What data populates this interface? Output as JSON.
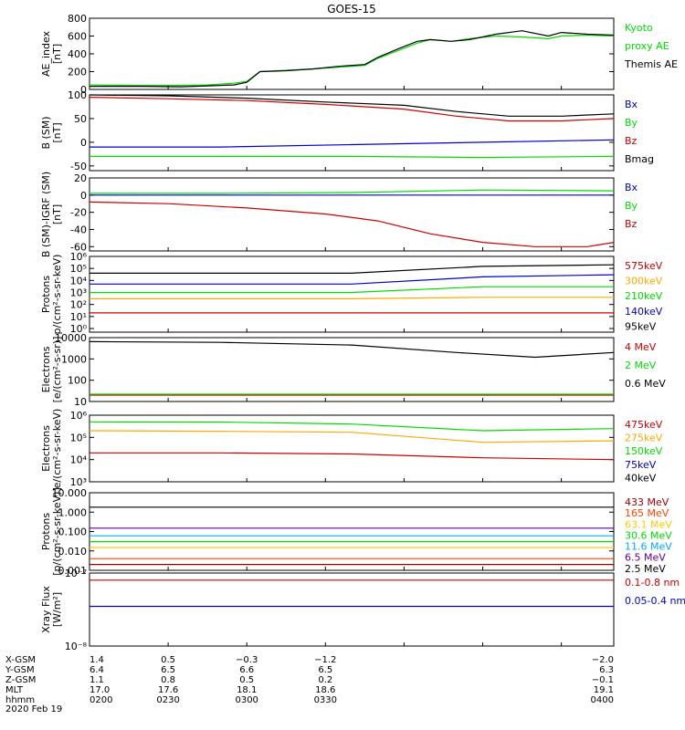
{
  "title": "GOES-15",
  "chart_data": [
    {
      "type": "line",
      "panel": "ae",
      "ylabel": [
        "AE_index",
        "[nT]"
      ],
      "yscale": "linear",
      "ylim": [
        0,
        800
      ],
      "yticks": [
        0,
        200,
        400,
        600,
        800
      ],
      "ytick_labels": [
        "0",
        "200",
        "400",
        "600",
        "800"
      ],
      "series": [
        {
          "name": "Kyoto",
          "color": "#00dd00",
          "points": [
            [
              0,
              50
            ],
            [
              20,
              45
            ],
            [
              35,
              45
            ],
            [
              45,
              50
            ],
            [
              55,
              70
            ],
            [
              60,
              90
            ],
            [
              65,
              200
            ],
            [
              75,
              215
            ],
            [
              85,
              230
            ],
            [
              95,
              250
            ],
            [
              105,
              270
            ],
            [
              110,
              350
            ],
            [
              118,
              440
            ],
            [
              125,
              520
            ],
            [
              130,
              560
            ],
            [
              138,
              540
            ],
            [
              145,
              570
            ],
            [
              155,
              600
            ],
            [
              165,
              590
            ],
            [
              175,
              570
            ],
            [
              180,
              600
            ],
            [
              190,
              610
            ],
            [
              200,
              600
            ]
          ]
        },
        {
          "name": "proxy AE",
          "color": "#00dd00",
          "points": []
        },
        {
          "name": "Themis AE",
          "color": "#000000",
          "points": [
            [
              0,
              35
            ],
            [
              20,
              35
            ],
            [
              35,
              30
            ],
            [
              45,
              40
            ],
            [
              55,
              50
            ],
            [
              60,
              80
            ],
            [
              65,
              200
            ],
            [
              75,
              210
            ],
            [
              85,
              230
            ],
            [
              95,
              260
            ],
            [
              105,
              280
            ],
            [
              110,
              360
            ],
            [
              118,
              460
            ],
            [
              125,
              540
            ],
            [
              130,
              560
            ],
            [
              138,
              540
            ],
            [
              145,
              560
            ],
            [
              155,
              620
            ],
            [
              165,
              660
            ],
            [
              175,
              600
            ],
            [
              180,
              640
            ],
            [
              190,
              620
            ],
            [
              200,
              610
            ]
          ]
        }
      ]
    },
    {
      "type": "line",
      "panel": "b_sm",
      "ylabel": [
        "B (SM)",
        "[nT]"
      ],
      "yscale": "linear",
      "ylim": [
        -60,
        100
      ],
      "yticks": [
        -50,
        0,
        50,
        100
      ],
      "ytick_labels": [
        "-50",
        "0",
        "50",
        "100"
      ],
      "series": [
        {
          "name": "Bx",
          "color": "#0000cc",
          "points": [
            [
              0,
              -10
            ],
            [
              50,
              -10
            ],
            [
              100,
              -5
            ],
            [
              150,
              0
            ],
            [
              200,
              5
            ]
          ]
        },
        {
          "name": "By",
          "color": "#00dd00",
          "points": [
            [
              0,
              -30
            ],
            [
              50,
              -30
            ],
            [
              100,
              -30
            ],
            [
              150,
              -32
            ],
            [
              200,
              -30
            ]
          ]
        },
        {
          "name": "Bz",
          "color": "#cc0000",
          "points": [
            [
              0,
              95
            ],
            [
              30,
              92
            ],
            [
              60,
              88
            ],
            [
              90,
              80
            ],
            [
              120,
              70
            ],
            [
              140,
              55
            ],
            [
              160,
              45
            ],
            [
              180,
              45
            ],
            [
              200,
              50
            ]
          ]
        },
        {
          "name": "Bmag",
          "color": "#000000",
          "points": [
            [
              0,
              100
            ],
            [
              30,
              98
            ],
            [
              60,
              93
            ],
            [
              90,
              85
            ],
            [
              120,
              78
            ],
            [
              140,
              65
            ],
            [
              160,
              55
            ],
            [
              180,
              55
            ],
            [
              200,
              60
            ]
          ]
        }
      ]
    },
    {
      "type": "line",
      "panel": "b_sm_igrf",
      "ylabel": [
        "B (SM)-IGRF (SM)",
        "[nT]"
      ],
      "yscale": "linear",
      "ylim": [
        -65,
        20
      ],
      "yticks": [
        -60,
        -40,
        -20,
        0,
        20
      ],
      "ytick_labels": [
        "-60",
        "-40",
        "-20",
        "0",
        "20"
      ],
      "series": [
        {
          "name": "Bx",
          "color": "#0000cc",
          "points": [
            [
              0,
              0
            ],
            [
              50,
              0
            ],
            [
              100,
              0
            ],
            [
              150,
              0
            ],
            [
              200,
              0
            ]
          ]
        },
        {
          "name": "By",
          "color": "#00dd00",
          "points": [
            [
              0,
              2
            ],
            [
              50,
              2
            ],
            [
              100,
              3
            ],
            [
              150,
              6
            ],
            [
              200,
              5
            ]
          ]
        },
        {
          "name": "Bz",
          "color": "#cc0000",
          "points": [
            [
              0,
              -8
            ],
            [
              30,
              -10
            ],
            [
              60,
              -15
            ],
            [
              90,
              -22
            ],
            [
              110,
              -30
            ],
            [
              130,
              -45
            ],
            [
              150,
              -55
            ],
            [
              170,
              -60
            ],
            [
              190,
              -60
            ],
            [
              200,
              -55
            ]
          ]
        }
      ]
    },
    {
      "type": "line",
      "panel": "protons_low",
      "ylabel": [
        "Protons",
        "p/(cm²-s-sr-keV)"
      ],
      "yscale": "log",
      "ylim": [
        0.5,
        1000000
      ],
      "yticks": [
        1,
        10,
        100,
        1000,
        10000,
        100000,
        1000000
      ],
      "ytick_labels": [
        "10⁰",
        "10¹",
        "10²",
        "10³",
        "10⁴",
        "10⁵",
        "10⁶"
      ],
      "series": [
        {
          "name": "575keV",
          "color": "#cc0000",
          "points": [
            [
              0,
              20
            ],
            [
              50,
              20
            ],
            [
              100,
              20
            ],
            [
              150,
              20
            ],
            [
              200,
              20
            ]
          ]
        },
        {
          "name": "300keV",
          "color": "#ffaa00",
          "points": [
            [
              0,
              300
            ],
            [
              50,
              300
            ],
            [
              100,
              300
            ],
            [
              150,
              400
            ],
            [
              200,
              400
            ]
          ]
        },
        {
          "name": "210keV",
          "color": "#00dd00",
          "points": [
            [
              0,
              1000
            ],
            [
              50,
              1000
            ],
            [
              100,
              1000
            ],
            [
              150,
              3000
            ],
            [
              200,
              3000
            ]
          ]
        },
        {
          "name": "140keV",
          "color": "#0000cc",
          "points": [
            [
              0,
              5000
            ],
            [
              50,
              5000
            ],
            [
              100,
              5000
            ],
            [
              150,
              20000
            ],
            [
              200,
              30000
            ]
          ]
        },
        {
          "name": "95keV",
          "color": "#000000",
          "points": [
            [
              0,
              40000
            ],
            [
              50,
              40000
            ],
            [
              100,
              40000
            ],
            [
              150,
              150000
            ],
            [
              200,
              200000
            ]
          ]
        }
      ]
    },
    {
      "type": "line",
      "panel": "electrons_mev",
      "ylabel": [
        "Electrons",
        "[e/(cm²-s-sr)]"
      ],
      "yscale": "log",
      "ylim": [
        10,
        10000
      ],
      "yticks": [
        10,
        100,
        1000,
        10000
      ],
      "ytick_labels": [
        "10",
        "100",
        "1000",
        "10000"
      ],
      "series": [
        {
          "name": "4 MeV",
          "color": "#cc0000",
          "points": [
            [
              0,
              20
            ],
            [
              200,
              20
            ]
          ]
        },
        {
          "name": "2 MeV",
          "color": "#00dd00",
          "points": [
            [
              0,
              22
            ],
            [
              200,
              22
            ]
          ]
        },
        {
          "name": "0.6 MeV",
          "color": "#000000",
          "points": [
            [
              0,
              6500
            ],
            [
              50,
              6000
            ],
            [
              100,
              4500
            ],
            [
              140,
              2000
            ],
            [
              170,
              1200
            ],
            [
              200,
              2000
            ]
          ]
        }
      ]
    },
    {
      "type": "line",
      "panel": "electrons_kev",
      "ylabel": [
        "Electrons",
        "e/(cm²-s-sr-keV)"
      ],
      "yscale": "log",
      "ylim": [
        1000,
        1000000
      ],
      "yticks": [
        1000,
        10000,
        100000,
        1000000
      ],
      "ytick_labels": [
        "10³",
        "10⁴",
        "10⁵",
        "10⁶"
      ],
      "series": [
        {
          "name": "475keV",
          "color": "#cc0000",
          "points": [
            [
              0,
              20000
            ],
            [
              50,
              20000
            ],
            [
              100,
              18000
            ],
            [
              150,
              12000
            ],
            [
              200,
              10000
            ]
          ]
        },
        {
          "name": "275keV",
          "color": "#ffaa00",
          "points": [
            [
              0,
              200000
            ],
            [
              50,
              190000
            ],
            [
              100,
              170000
            ],
            [
              150,
              60000
            ],
            [
              200,
              70000
            ]
          ]
        },
        {
          "name": "150keV",
          "color": "#00dd00",
          "points": [
            [
              0,
              500000
            ],
            [
              50,
              490000
            ],
            [
              100,
              400000
            ],
            [
              150,
              200000
            ],
            [
              200,
              250000
            ]
          ]
        },
        {
          "name": "75keV",
          "color": "#0000cc",
          "points": []
        },
        {
          "name": "40keV",
          "color": "#000000",
          "points": []
        }
      ]
    },
    {
      "type": "line",
      "panel": "protons_high",
      "ylabel": [
        "Protons",
        "[p/(cm²-s-sr-keV)]"
      ],
      "yscale": "log",
      "ylim": [
        0.001,
        10
      ],
      "yticks": [
        0.001,
        0.01,
        0.1,
        1,
        10
      ],
      "ytick_labels": [
        "0.001",
        "0.010",
        "0.100",
        "1.000",
        "10.000"
      ],
      "series": [
        {
          "name": "433 MeV",
          "color": "#990000",
          "points": [
            [
              0,
              0.002
            ],
            [
              200,
              0.002
            ]
          ]
        },
        {
          "name": "165 MeV",
          "color": "#ff4400",
          "points": [
            [
              0,
              0.004
            ],
            [
              200,
              0.004
            ]
          ]
        },
        {
          "name": "63.1 MeV",
          "color": "#ffcc00",
          "points": [
            [
              0,
              0.015
            ],
            [
              200,
              0.015
            ]
          ]
        },
        {
          "name": "30.6 MeV",
          "color": "#00dd00",
          "points": [
            [
              0,
              0.03
            ],
            [
              200,
              0.03
            ]
          ]
        },
        {
          "name": "11.6 MeV",
          "color": "#00aaff",
          "points": [
            [
              0,
              0.06
            ],
            [
              200,
              0.06
            ]
          ]
        },
        {
          "name": "6.5 MeV",
          "color": "#660099",
          "points": [
            [
              0,
              0.15
            ],
            [
              200,
              0.15
            ]
          ]
        },
        {
          "name": "2.5 MeV",
          "color": "#000000",
          "points": [
            [
              0,
              1.8
            ],
            [
              200,
              1.8
            ]
          ]
        }
      ]
    },
    {
      "type": "line",
      "panel": "xray",
      "ylabel": [
        "Xray Flux",
        "[W/m²]"
      ],
      "yscale": "log",
      "ylim": [
        1e-08,
        1e-07
      ],
      "yticks": [
        1e-08,
        1e-07
      ],
      "ytick_labels": [
        "10⁻⁸",
        "10⁻⁷"
      ],
      "series": [
        {
          "name": "0.1-0.8 nm",
          "color": "#cc0000",
          "points": [
            [
              0,
              8e-08
            ],
            [
              200,
              8e-08
            ]
          ]
        },
        {
          "name": "0.05-0.4 nm",
          "color": "#0000cc",
          "points": [
            [
              0,
              3.5e-08
            ],
            [
              200,
              3.5e-08
            ]
          ]
        }
      ]
    }
  ],
  "footer": {
    "row_labels": [
      "X-GSM",
      "Y-GSM",
      "Z-GSM",
      "MLT",
      "hhmm"
    ],
    "date": "2020 Feb 19",
    "columns": [
      [
        "1.4",
        "6.4",
        "1.1",
        "17.0",
        "0200"
      ],
      [
        "0.5",
        "6.5",
        "0.8",
        "17.6",
        "0230"
      ],
      [
        "−0.3",
        "6.6",
        "0.5",
        "18.1",
        "0300"
      ],
      [
        "−1.2",
        "6.5",
        "0.2",
        "18.6",
        "0330"
      ],
      [
        "−2.0",
        "6.3",
        "−0.1",
        "19.1",
        "0400"
      ]
    ]
  }
}
